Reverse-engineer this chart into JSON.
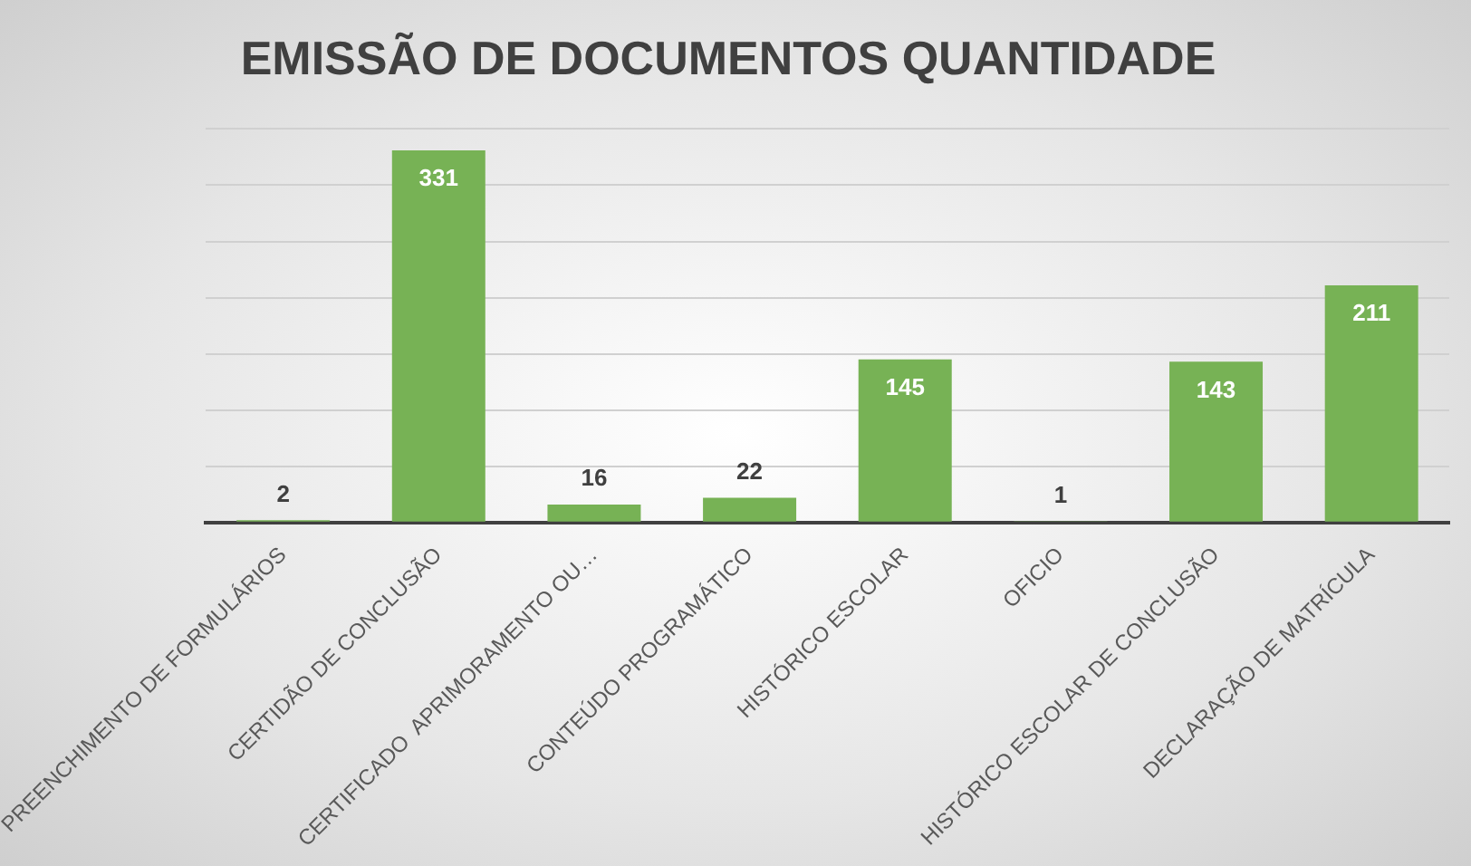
{
  "chart_data": {
    "type": "bar",
    "title": "EMISSÃO DE DOCUMENTOS QUANTIDADE",
    "categories": [
      "PREENCHIMENTO DE FORMULÁRIOS",
      "CERTIDÃO DE CONCLUSÃO",
      "CERTIFICADO  APRIMORAMENTO OU…",
      "CONTEÚDO PROGRAMÁTICO",
      "HISTÓRICO ESCOLAR",
      "OFICIO",
      "HISTÓRICO ESCOLAR DE CONCLUSÃO",
      "DECLARAÇÃO DE MATRÍCULA"
    ],
    "values": [
      2,
      331,
      16,
      22,
      145,
      1,
      143,
      211
    ],
    "color": "#77b255",
    "data_labels": true,
    "ylim": [
      0,
      350
    ],
    "yticks": [
      {
        "value": 0,
        "label": null
      },
      {
        "value": 50,
        "label": null
      },
      {
        "value": 100,
        "label": null
      },
      {
        "value": 150,
        "label": null
      },
      {
        "value": 200,
        "label": null
      },
      {
        "value": 250,
        "label": null
      },
      {
        "value": 300,
        "label": null
      },
      {
        "value": 350,
        "label": null
      }
    ],
    "grid": "y",
    "tick_labels": "x",
    "legend": false
  }
}
